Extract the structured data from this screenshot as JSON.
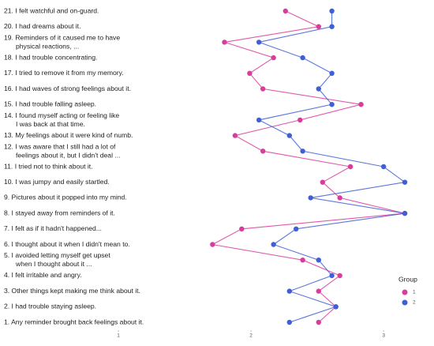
{
  "chart_data": {
    "type": "line",
    "orientation": "horizontal",
    "categories": [
      "1. Any reminder brought back feelings about it.",
      "2. I had trouble staying asleep.",
      "3. Other things kept making me think about it.",
      "4. I felt irritable and angry.",
      "5. I avoided letting myself get upset\nwhen I thought about it ...",
      "6. I thought about it when I didn't mean to.",
      "7. I felt as if it hadn't happened...",
      "8. I stayed away from reminders of it.",
      "9. Pictures about it popped into my mind.",
      "10. I was jumpy and easily startled.",
      "11. I tried not to think about it.",
      "12. I was aware that I still had a lot of\nfeelings about it, but I didn't deal ...",
      "13. My feelings about it were kind of numb.",
      "14. I found myself acting or feeling like\nI was back at that time.",
      "15. I had trouble falling asleep.",
      "16. I had waves of strong feelings about it.",
      "17. I tried to remove it from my memory.",
      "18. I had trouble concentrating.",
      "19. Reminders of it caused me to have\nphysical reactions, ...",
      "20. I had dreams about it.",
      "21. I felt watchful and on-guard."
    ],
    "series": [
      {
        "name": "1",
        "color": "#d93d9b",
        "values": [
          2.51,
          2.64,
          2.51,
          2.67,
          2.39,
          1.71,
          1.93,
          3.16,
          2.67,
          2.54,
          2.75,
          2.09,
          1.88,
          2.37,
          2.83,
          2.09,
          1.99,
          2.17,
          1.8,
          2.51,
          2.26
        ]
      },
      {
        "name": "2",
        "color": "#3f5fd6",
        "values": [
          2.29,
          2.64,
          2.29,
          2.61,
          2.51,
          2.17,
          2.34,
          3.16,
          2.45,
          3.16,
          3.0,
          2.39,
          2.29,
          2.06,
          2.61,
          2.51,
          2.61,
          2.39,
          2.06,
          2.61,
          2.61
        ]
      }
    ],
    "xlim": [
      1,
      3.38
    ],
    "xticks": [
      1,
      2,
      3
    ],
    "legend_title": "Group",
    "legend": "lower right"
  }
}
